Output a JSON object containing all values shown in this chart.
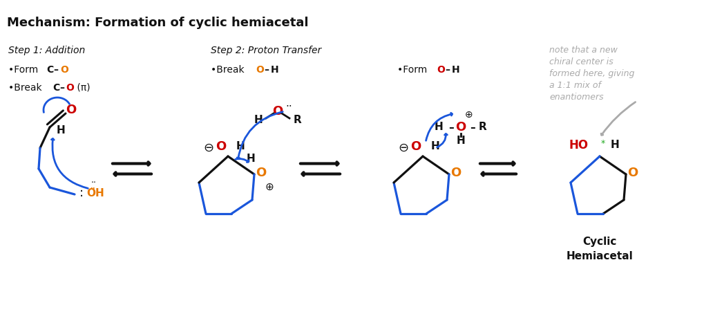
{
  "title": "Mechanism: Formation of cyclic hemiacetal",
  "title_fontsize": 13,
  "bg_color": "#ffffff",
  "step1_label": "Step 1: Addition",
  "step2_label": "Step 2: Proton Transfer",
  "note_text": "note that a new\nchiral center is\nformed here, giving\na 1:1 mix of\nenantiomers",
  "cyclic_label": "Cyclic\nHemiacetal",
  "orange": "#e87800",
  "red": "#cc0000",
  "blue": "#1a56db",
  "black": "#111111",
  "gray": "#aaaaaa",
  "green": "#22aa22",
  "fig_w": 10.2,
  "fig_h": 4.54,
  "dpi": 100
}
